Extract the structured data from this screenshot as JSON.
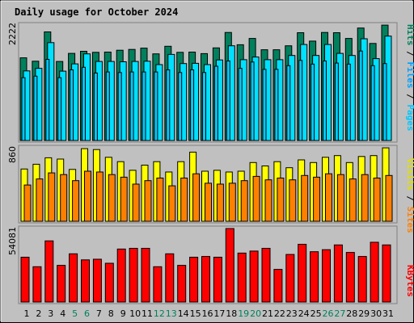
{
  "title": "Daily usage for October 2024",
  "colors": {
    "background": "#c0c0c0",
    "panel": "#c0c0c0",
    "title": "#0000ff",
    "hits": "#00805c",
    "files": "#00e0ff",
    "pages": "#00c8ff",
    "visits": "#ffff00",
    "sites": "#ff8000",
    "kbytes": "#ff0000",
    "weekend": "#00805c",
    "weekday": "#000000"
  },
  "chart_data": [
    {
      "type": "bar",
      "panel": "hits-files-pages",
      "axis_max_label": "2222",
      "ylim": [
        0,
        2222
      ],
      "categories": [
        "1",
        "2",
        "3",
        "4",
        "5",
        "6",
        "7",
        "8",
        "9",
        "10",
        "11",
        "12",
        "13",
        "14",
        "15",
        "16",
        "17",
        "18",
        "19",
        "20",
        "21",
        "22",
        "23",
        "24",
        "25",
        "26",
        "27",
        "28",
        "29",
        "30",
        "31"
      ],
      "weekend_days": [
        "5",
        "6",
        "12",
        "13",
        "19",
        "20",
        "26",
        "27"
      ],
      "legend": {
        "hits": "Hits",
        "files": "Files",
        "pages": "Pages",
        "sep": " / "
      },
      "series": [
        {
          "name": "Hits",
          "values": [
            1580,
            1515,
            2075,
            1510,
            1665,
            1705,
            1685,
            1690,
            1725,
            1740,
            1765,
            1655,
            1800,
            1685,
            1690,
            1660,
            1770,
            2065,
            1830,
            1950,
            1735,
            1735,
            1810,
            2060,
            1900,
            2065,
            2060,
            1950,
            2150,
            1855,
            2205
          ]
        },
        {
          "name": "Files",
          "values": [
            1330,
            1380,
            1870,
            1325,
            1465,
            1655,
            1510,
            1510,
            1505,
            1510,
            1515,
            1450,
            1645,
            1470,
            1475,
            1450,
            1540,
            1810,
            1545,
            1595,
            1545,
            1545,
            1625,
            1835,
            1625,
            1835,
            1665,
            1625,
            1945,
            1565,
            1995
          ]
        },
        {
          "name": "Pages",
          "values": [
            1200,
            1230,
            1550,
            1200,
            1350,
            1400,
            1290,
            1310,
            1300,
            1310,
            1310,
            1310,
            1350,
            1300,
            1350,
            1300,
            1420,
            1520,
            1380,
            1500,
            1360,
            1360,
            1430,
            1530,
            1460,
            1520,
            1480,
            1460,
            1710,
            1430,
            1470
          ]
        }
      ]
    },
    {
      "type": "bar",
      "panel": "visits-sites",
      "axis_max_label": "860",
      "ylim": [
        0,
        860
      ],
      "legend": {
        "visits": "Visits",
        "sites": "Sites",
        "sep": " / "
      },
      "series": [
        {
          "name": "Visits",
          "values": [
            605,
            660,
            735,
            720,
            600,
            840,
            830,
            740,
            690,
            590,
            650,
            690,
            570,
            690,
            800,
            580,
            590,
            570,
            580,
            680,
            640,
            690,
            620,
            710,
            680,
            740,
            760,
            680,
            750,
            760,
            850
          ]
        },
        {
          "name": "Sites",
          "values": [
            420,
            490,
            560,
            540,
            470,
            580,
            570,
            540,
            510,
            430,
            470,
            500,
            410,
            500,
            550,
            440,
            430,
            440,
            470,
            520,
            480,
            500,
            480,
            530,
            510,
            550,
            540,
            490,
            540,
            500,
            530
          ]
        }
      ]
    },
    {
      "type": "bar",
      "panel": "kbytes",
      "axis_max_label": "54081",
      "ylim": [
        0,
        54081
      ],
      "legend": {
        "kbytes": "KBytes"
      },
      "series": [
        {
          "name": "KBytes",
          "values": [
            33000,
            26000,
            45000,
            27000,
            35500,
            31000,
            31500,
            28500,
            39000,
            39500,
            39500,
            26000,
            35500,
            27000,
            33000,
            33500,
            33000,
            54081,
            36000,
            37500,
            39500,
            24000,
            35000,
            42500,
            37000,
            38500,
            42000,
            36500,
            33500,
            44000,
            42000
          ]
        }
      ]
    }
  ]
}
